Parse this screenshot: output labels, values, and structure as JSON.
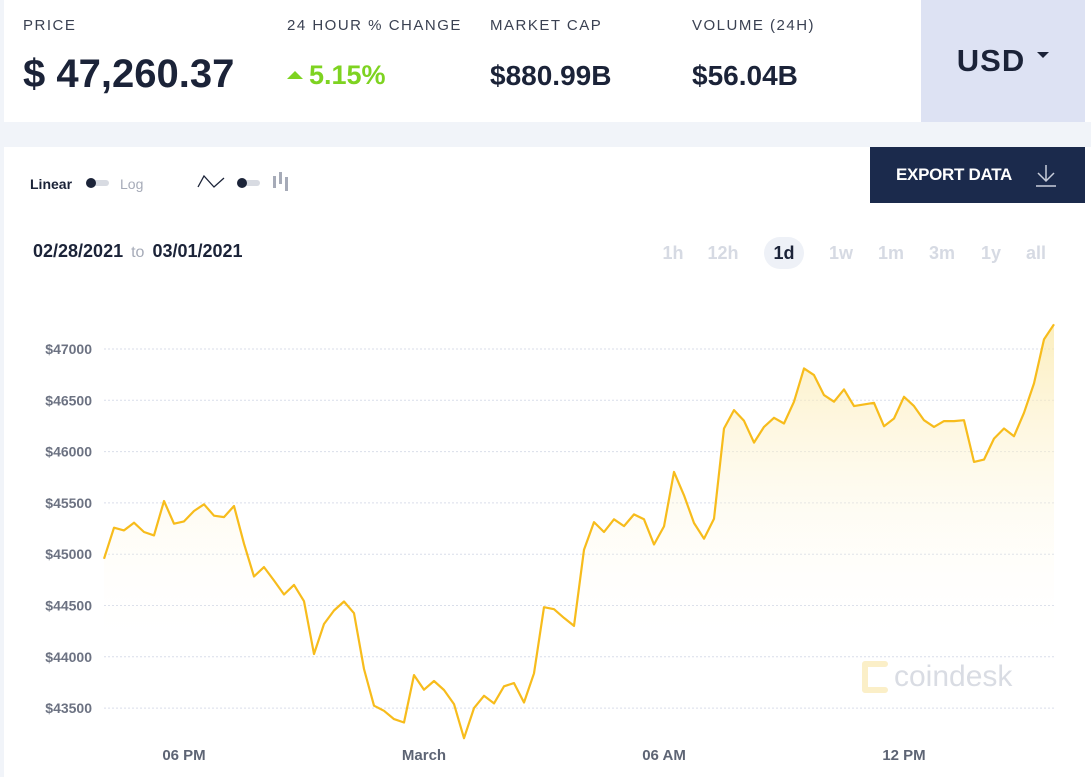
{
  "header": {
    "price": {
      "label": "PRICE",
      "value": "$ 47,260.37"
    },
    "change": {
      "label": "24 HOUR % CHANGE",
      "value": "5.15%",
      "direction": "up",
      "color": "#7ed321"
    },
    "market_cap": {
      "label": "MARKET CAP",
      "value": "$880.99B"
    },
    "volume": {
      "label": "VOLUME (24H)",
      "value": "$56.04B"
    },
    "currency": {
      "selected": "USD"
    }
  },
  "controls": {
    "scale_linear": "Linear",
    "scale_log": "Log",
    "scale_selected": "Linear",
    "chart_type_icons": [
      "line-chart-icon",
      "candlestick-icon"
    ],
    "export_label": "EXPORT DATA",
    "date_from": "02/28/2021",
    "date_to_word": "to",
    "date_to": "03/01/2021",
    "ranges": [
      "1h",
      "12h",
      "1d",
      "1w",
      "1m",
      "3m",
      "1y",
      "all"
    ],
    "range_selected": "1d"
  },
  "watermark": "coindesk",
  "chart_data": {
    "type": "area",
    "line_color": "#f7bc1c",
    "grid": true,
    "ylim": [
      43190,
      47480
    ],
    "y_ticks": [
      "$43500",
      "$44000",
      "$44500",
      "$45000",
      "$45500",
      "$46000",
      "$46500",
      "$47000"
    ],
    "y_tick_values": [
      43500,
      44000,
      44500,
      45000,
      45500,
      46000,
      46500,
      47000
    ],
    "x_ticks": [
      {
        "label": "06 PM",
        "at": "02/28 18:00"
      },
      {
        "label": "March",
        "at": "03/01 00:00"
      },
      {
        "label": "06 AM",
        "at": "03/01 06:00"
      },
      {
        "label": "12 PM",
        "at": "03/01 12:00"
      }
    ],
    "x": [
      "02/28 16:00",
      "02/28 16:15",
      "02/28 16:30",
      "02/28 16:45",
      "02/28 17:00",
      "02/28 17:15",
      "02/28 17:30",
      "02/28 17:45",
      "02/28 18:00",
      "02/28 18:15",
      "02/28 18:30",
      "02/28 18:45",
      "02/28 19:00",
      "02/28 19:15",
      "02/28 19:30",
      "02/28 19:45",
      "02/28 20:00",
      "02/28 20:15",
      "02/28 20:30",
      "02/28 20:45",
      "02/28 21:00",
      "02/28 21:15",
      "02/28 21:30",
      "02/28 21:45",
      "02/28 22:00",
      "02/28 22:15",
      "02/28 22:30",
      "02/28 22:45",
      "02/28 23:00",
      "02/28 23:15",
      "02/28 23:30",
      "02/28 23:45",
      "03/01 00:00",
      "03/01 00:15",
      "03/01 00:30",
      "03/01 00:45",
      "03/01 01:00",
      "03/01 01:15",
      "03/01 01:30",
      "03/01 01:45",
      "03/01 02:00",
      "03/01 02:15",
      "03/01 02:30",
      "03/01 02:45",
      "03/01 03:00",
      "03/01 03:15",
      "03/01 03:30",
      "03/01 03:45",
      "03/01 04:00",
      "03/01 04:15",
      "03/01 04:30",
      "03/01 04:45",
      "03/01 05:00",
      "03/01 05:15",
      "03/01 05:30",
      "03/01 05:45",
      "03/01 06:00",
      "03/01 06:15",
      "03/01 06:30",
      "03/01 06:45",
      "03/01 07:00",
      "03/01 07:15",
      "03/01 07:30",
      "03/01 07:45",
      "03/01 08:00",
      "03/01 08:15",
      "03/01 08:30",
      "03/01 08:45",
      "03/01 09:00",
      "03/01 09:15",
      "03/01 09:30",
      "03/01 09:45",
      "03/01 10:00",
      "03/01 10:15",
      "03/01 10:30",
      "03/01 10:45",
      "03/01 11:00",
      "03/01 11:15",
      "03/01 11:30",
      "03/01 11:45",
      "03/01 12:00",
      "03/01 12:15",
      "03/01 12:30",
      "03/01 12:45",
      "03/01 13:00",
      "03/01 13:15",
      "03/01 13:30",
      "03/01 13:45",
      "03/01 14:00",
      "03/01 14:15",
      "03/01 14:30",
      "03/01 14:45",
      "03/01 15:00",
      "03/01 15:15",
      "03/01 15:30",
      "03/01 15:45"
    ],
    "values": [
      44955,
      45258,
      45232,
      45307,
      45216,
      45183,
      45519,
      45297,
      45320,
      45421,
      45486,
      45375,
      45362,
      45470,
      45102,
      44783,
      44874,
      44744,
      44607,
      44701,
      44542,
      44027,
      44320,
      44451,
      44539,
      44425,
      43881,
      43523,
      43474,
      43393,
      43360,
      43822,
      43679,
      43764,
      43676,
      43539,
      43207,
      43500,
      43620,
      43546,
      43712,
      43744,
      43555,
      43839,
      44483,
      44464,
      44379,
      44301,
      45043,
      45313,
      45216,
      45340,
      45274,
      45388,
      45340,
      45095,
      45271,
      45802,
      45574,
      45304,
      45151,
      45346,
      46225,
      46404,
      46300,
      46088,
      46241,
      46329,
      46274,
      46486,
      46811,
      46746,
      46551,
      46486,
      46606,
      46443,
      46460,
      46476,
      46248,
      46323,
      46534,
      46443,
      46306,
      46241,
      46297,
      46297,
      46306,
      45900,
      45922,
      46127,
      46225,
      46150,
      46378,
      46665,
      47094,
      47241
    ]
  }
}
